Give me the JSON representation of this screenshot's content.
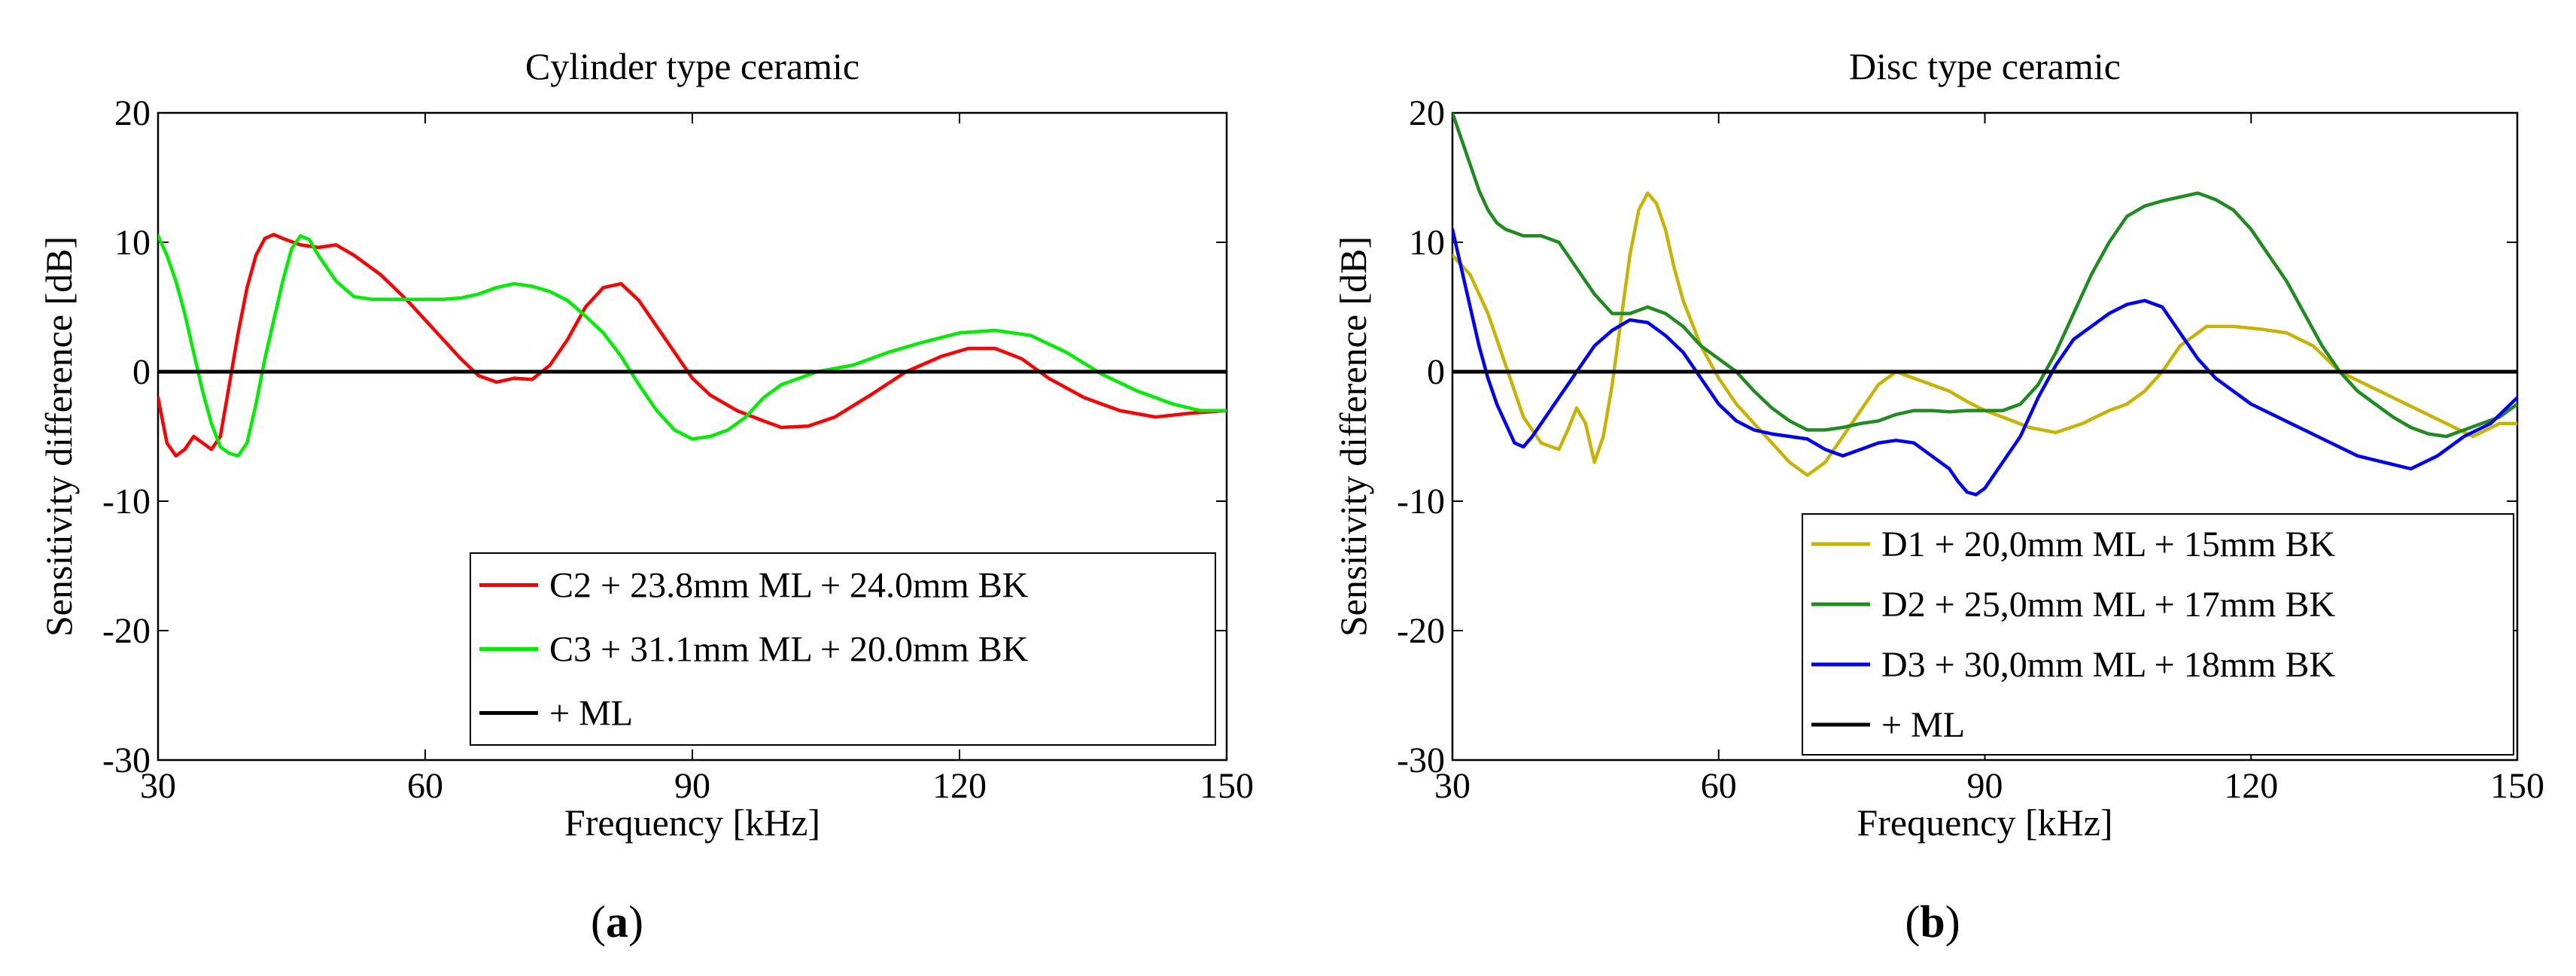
{
  "panels": [
    {
      "label_open": "(",
      "label_letter": "a",
      "label_close": ")",
      "chart": {
        "type": "line",
        "title": "Cylinder type ceramic",
        "xlabel": "Frequency [kHz]",
        "ylabel": "Sensitivity difference [dB]",
        "xlim": [
          30,
          150
        ],
        "ylim": [
          -30,
          20
        ],
        "xticks": [
          "30",
          "60",
          "90",
          "120",
          "150"
        ],
        "yticks": [
          "20",
          "10",
          "0",
          "-10",
          "-20",
          "-30"
        ],
        "legend_position": "lower-right",
        "grid": false,
        "series": [
          {
            "name": "C2 + 23.8mm ML + 24.0mm BK",
            "color": "#ff0000",
            "x": [
              30,
              31,
              32,
              33,
              34,
              35,
              36,
              37,
              38,
              39,
              40,
              41,
              42,
              43,
              44,
              46,
              48,
              50,
              52,
              55,
              58,
              60,
              62,
              64,
              66,
              68,
              70,
              72,
              74,
              76,
              78,
              80,
              82,
              84,
              86,
              88,
              90,
              92,
              95,
              98,
              100,
              103,
              106,
              110,
              114,
              118,
              121,
              124,
              127,
              130,
              134,
              138,
              142,
              146,
              150
            ],
            "y": [
              -2,
              -5.5,
              -6.5,
              -6,
              -5,
              -5.5,
              -6,
              -5,
              -1,
              3,
              6.5,
              9,
              10.3,
              10.6,
              10.3,
              9.8,
              9.6,
              9.8,
              9,
              7.5,
              5.5,
              4,
              2.5,
              1,
              -0.3,
              -0.8,
              -0.5,
              -0.6,
              0.5,
              2.5,
              5,
              6.5,
              6.8,
              5.5,
              3.5,
              1.5,
              -0.5,
              -1.8,
              -3,
              -3.8,
              -4.3,
              -4.2,
              -3.5,
              -1.8,
              0,
              1.2,
              1.8,
              1.8,
              1,
              -0.5,
              -2,
              -3,
              -3.5,
              -3.2,
              -3
            ]
          },
          {
            "name": "C3 + 31.1mm ML + 20.0mm BK",
            "color": "#00ee00",
            "x": [
              30,
              31,
              32,
              33,
              34,
              35,
              36,
              37,
              38,
              39,
              40,
              41,
              42,
              43,
              44,
              45,
              46,
              47,
              48,
              50,
              52,
              54,
              56,
              58,
              60,
              62,
              64,
              66,
              68,
              70,
              72,
              74,
              76,
              78,
              80,
              82,
              84,
              86,
              88,
              90,
              92,
              94,
              96,
              98,
              100,
              104,
              108,
              112,
              116,
              120,
              124,
              128,
              132,
              136,
              140,
              144,
              147,
              150
            ],
            "y": [
              10.5,
              9,
              7,
              4.5,
              1.5,
              -1.5,
              -4,
              -5.8,
              -6.3,
              -6.5,
              -5.5,
              -2.5,
              1,
              4,
              7,
              9.5,
              10.5,
              10.2,
              9,
              7,
              5.8,
              5.6,
              5.6,
              5.6,
              5.6,
              5.6,
              5.7,
              6,
              6.5,
              6.8,
              6.6,
              6.2,
              5.5,
              4.3,
              3,
              1.2,
              -1,
              -3,
              -4.5,
              -5.2,
              -5,
              -4.5,
              -3.5,
              -2,
              -1,
              0,
              0.5,
              1.5,
              2.3,
              3,
              3.2,
              2.8,
              1.5,
              -0.2,
              -1.5,
              -2.5,
              -3,
              -3
            ]
          },
          {
            "name": "+ ML",
            "color": "#000000",
            "x": [
              30,
              150
            ],
            "y": [
              0,
              0
            ]
          }
        ]
      }
    },
    {
      "label_open": "(",
      "label_letter": "b",
      "label_close": ")",
      "chart": {
        "type": "line",
        "title": "Disc type ceramic",
        "xlabel": "Frequency [kHz]",
        "ylabel": "Sensitivity difference [dB]",
        "xlim": [
          30,
          150
        ],
        "ylim": [
          -30,
          20
        ],
        "xticks": [
          "30",
          "60",
          "90",
          "120",
          "150"
        ],
        "yticks": [
          "20",
          "10",
          "0",
          "-10",
          "-20",
          "-30"
        ],
        "legend_position": "lower-right",
        "grid": false,
        "series": [
          {
            "name": "D1 + 20,0mm ML + 15mm BK",
            "color": "#c8b400",
            "x": [
              30,
              32,
              34,
              36,
              38,
              40,
              42,
              43,
              44,
              45,
              46,
              47,
              48,
              49,
              50,
              51,
              52,
              53,
              54,
              55,
              56,
              58,
              60,
              62,
              64,
              66,
              68,
              70,
              72,
              74,
              76,
              78,
              80,
              82,
              84,
              86,
              88,
              90,
              92,
              95,
              98,
              101,
              104,
              106,
              108,
              110,
              112,
              115,
              118,
              121,
              124,
              127,
              130,
              133,
              136,
              139,
              142,
              145,
              148,
              150
            ],
            "y": [
              9,
              7.5,
              4.5,
              0.5,
              -3.5,
              -5.5,
              -6,
              -4.5,
              -2.8,
              -4,
              -7,
              -5,
              -1,
              4,
              9,
              12.5,
              13.8,
              13,
              11,
              8,
              5.5,
              2,
              -0.5,
              -2.5,
              -4,
              -5.5,
              -7,
              -8,
              -7,
              -5,
              -3,
              -1,
              0,
              -0.5,
              -1,
              -1.5,
              -2.3,
              -3,
              -3.5,
              -4.3,
              -4.7,
              -4,
              -3,
              -2.5,
              -1.5,
              0,
              2,
              3.5,
              3.5,
              3.3,
              3,
              2,
              0,
              -1,
              -2,
              -3,
              -4,
              -5,
              -4,
              -4
            ]
          },
          {
            "name": "D2 + 25,0mm ML + 17mm BK",
            "color": "#1e8c1e",
            "x": [
              30,
              31,
              32,
              33,
              34,
              35,
              36,
              38,
              40,
              42,
              44,
              46,
              48,
              50,
              52,
              54,
              56,
              58,
              60,
              62,
              64,
              66,
              68,
              70,
              72,
              74,
              76,
              78,
              80,
              82,
              84,
              86,
              88,
              90,
              92,
              94,
              96,
              98,
              100,
              102,
              104,
              106,
              108,
              110,
              112,
              114,
              116,
              118,
              120,
              122,
              124,
              126,
              128,
              130,
              132,
              134,
              136,
              138,
              140,
              142,
              144,
              146,
              148,
              150
            ],
            "y": [
              20,
              18,
              16,
              14,
              12.5,
              11.5,
              11,
              10.5,
              10.5,
              10,
              8,
              6,
              4.5,
              4.5,
              5,
              4.5,
              3.5,
              2,
              1,
              0,
              -1.5,
              -2.8,
              -3.8,
              -4.5,
              -4.5,
              -4.3,
              -4,
              -3.8,
              -3.3,
              -3,
              -3,
              -3.1,
              -3,
              -3,
              -3,
              -2.5,
              -1,
              1.5,
              4.5,
              7.5,
              10,
              12,
              12.8,
              13.2,
              13.5,
              13.8,
              13.3,
              12.5,
              11,
              9,
              7,
              4.5,
              2,
              0,
              -1.5,
              -2.5,
              -3.5,
              -4.3,
              -4.8,
              -5,
              -4.5,
              -4,
              -3.5,
              -2.5
            ]
          },
          {
            "name": "D3 + 30,0mm ML + 18mm BK",
            "color": "#0000ff",
            "x": [
              30,
              31,
              32,
              33,
              34,
              35,
              36,
              37,
              38,
              39,
              40,
              42,
              44,
              46,
              48,
              50,
              52,
              54,
              56,
              58,
              60,
              62,
              64,
              66,
              68,
              70,
              72,
              74,
              76,
              78,
              80,
              82,
              84,
              86,
              87,
              88,
              89,
              90,
              92,
              94,
              96,
              98,
              100,
              102,
              104,
              106,
              108,
              110,
              112,
              114,
              116,
              118,
              120,
              123,
              126,
              129,
              132,
              135,
              138,
              141,
              144,
              147,
              150
            ],
            "y": [
              11,
              8,
              5,
              2,
              -0.5,
              -2.5,
              -4,
              -5.5,
              -5.8,
              -5,
              -4,
              -2,
              0,
              2,
              3.2,
              4,
              3.8,
              2.8,
              1.5,
              -0.5,
              -2.5,
              -3.8,
              -4.5,
              -4.8,
              -5,
              -5.2,
              -6,
              -6.5,
              -6,
              -5.5,
              -5.3,
              -5.5,
              -6.5,
              -7.5,
              -8.5,
              -9.3,
              -9.5,
              -9,
              -7,
              -5,
              -2,
              0.5,
              2.5,
              3.5,
              4.5,
              5.2,
              5.5,
              5,
              3,
              1,
              -0.5,
              -1.5,
              -2.5,
              -3.5,
              -4.5,
              -5.5,
              -6.5,
              -7,
              -7.5,
              -6.5,
              -5,
              -4,
              -2
            ]
          },
          {
            "name": "+ ML",
            "color": "#000000",
            "x": [
              30,
              150
            ],
            "y": [
              0,
              0
            ]
          }
        ]
      }
    }
  ]
}
